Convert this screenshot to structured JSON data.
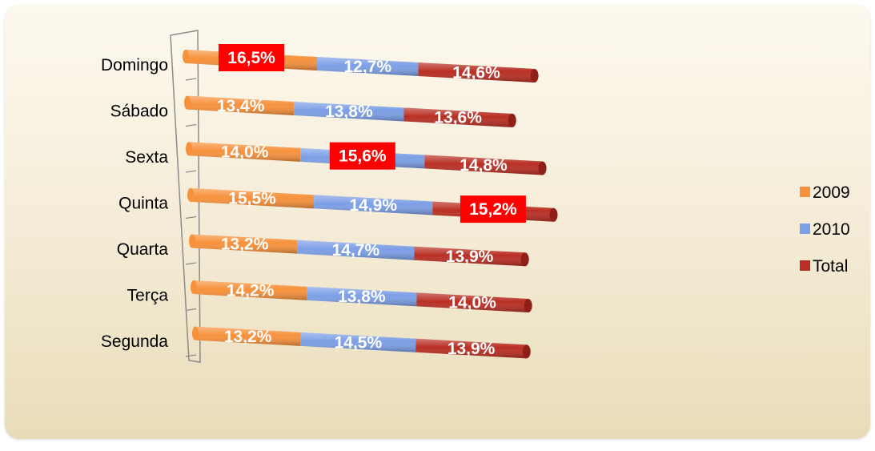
{
  "chart_data": {
    "type": "bar",
    "stacked": true,
    "orientation": "horizontal",
    "categories": [
      "Domingo",
      "Sábado",
      "Sexta",
      "Quinta",
      "Quarta",
      "Terça",
      "Segunda"
    ],
    "series": [
      {
        "name": "2009",
        "color": "#f7913c",
        "values": [
          16.5,
          13.4,
          14.0,
          15.5,
          13.2,
          14.2,
          13.2
        ],
        "labels": [
          "16,5%",
          "13,4%",
          "14,0%",
          "15,5%",
          "13,2%",
          "14,2%",
          "13,2%"
        ]
      },
      {
        "name": "2010",
        "color": "#7c9fe6",
        "values": [
          12.7,
          13.8,
          15.6,
          14.9,
          14.7,
          13.8,
          14.5
        ],
        "labels": [
          "12,7%",
          "13,8%",
          "15,6%",
          "14,9%",
          "14,7%",
          "13,8%",
          "14,5%"
        ]
      },
      {
        "name": "Total",
        "color": "#b92f24",
        "values": [
          14.6,
          13.6,
          14.8,
          15.2,
          13.9,
          14.0,
          13.9
        ],
        "labels": [
          "14,6%",
          "13,6%",
          "14,8%",
          "15,2%",
          "13,9%",
          "14,0%",
          "13,9%"
        ]
      }
    ],
    "highlighted": [
      {
        "category": "Domingo",
        "series": "2009",
        "color": "#ff0000"
      },
      {
        "category": "Sexta",
        "series": "2010",
        "color": "#ff0000"
      },
      {
        "category": "Quinta",
        "series": "Total",
        "color": "#ff0000"
      }
    ],
    "title": "",
    "xlabel": "",
    "ylabel": "",
    "legend_position": "right",
    "grid": false
  }
}
